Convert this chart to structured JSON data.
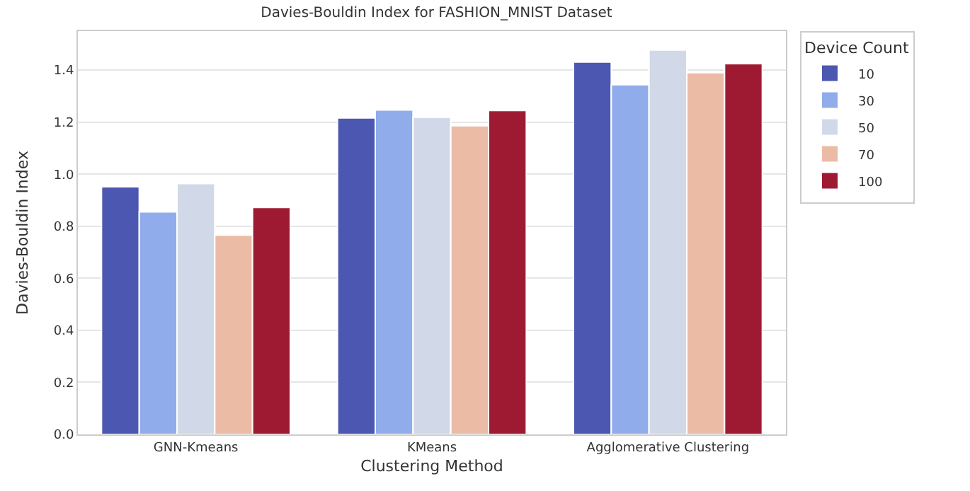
{
  "chart_data": {
    "type": "bar",
    "title": "Davies-Bouldin Index for FASHION_MNIST Dataset",
    "xlabel": "Clustering Method",
    "ylabel": "Davies-Bouldin Index",
    "legend_title": "Device Count",
    "categories": [
      "GNN-Kmeans",
      "KMeans",
      "Agglomerative Clustering"
    ],
    "series": [
      {
        "name": "10",
        "color": "#4b57b0",
        "values": [
          0.952,
          1.216,
          1.431
        ]
      },
      {
        "name": "30",
        "color": "#91aceb",
        "values": [
          0.855,
          1.247,
          1.344
        ]
      },
      {
        "name": "50",
        "color": "#d1d9e8",
        "values": [
          0.964,
          1.219,
          1.477
        ]
      },
      {
        "name": "70",
        "color": "#ecbba5",
        "values": [
          0.766,
          1.186,
          1.39
        ]
      },
      {
        "name": "100",
        "color": "#9e1a33",
        "values": [
          0.872,
          1.245,
          1.425
        ]
      }
    ],
    "ylim": [
      0,
      1.55
    ],
    "yticks": [
      {
        "value": 0,
        "label": "0.0"
      },
      {
        "value": 0.2,
        "label": "0.2"
      },
      {
        "value": 0.4,
        "label": "0.4"
      },
      {
        "value": 0.6,
        "label": "0.6"
      },
      {
        "value": 0.8,
        "label": "0.8"
      },
      {
        "value": 1.0,
        "label": "1.0"
      },
      {
        "value": 1.2,
        "label": "1.2"
      },
      {
        "value": 1.4,
        "label": "1.4"
      }
    ],
    "grid": "y",
    "legend": "top right"
  }
}
